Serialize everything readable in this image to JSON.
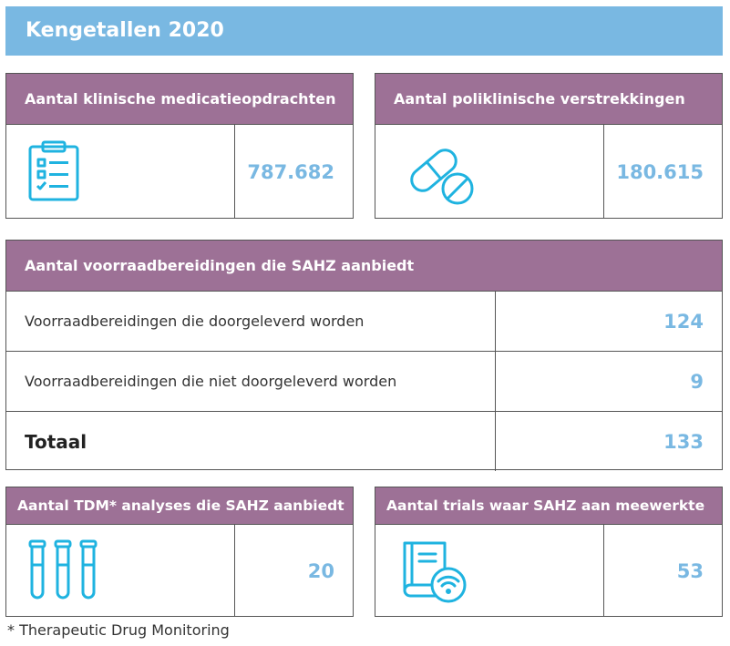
{
  "banner": {
    "title": "Kengetallen 2020"
  },
  "cards": {
    "clinical": {
      "title": "Aantal klinische medicatieopdrachten",
      "value": "787.682",
      "icon": "clipboard-checklist-icon"
    },
    "outpatient": {
      "title": "Aantal poliklinische verstrekkingen",
      "value": "180.615",
      "icon": "pill-capsule-icon"
    },
    "tdm": {
      "title": "Aantal TDM* analyses die SAHZ aanbiedt",
      "value": "20",
      "icon": "test-tubes-icon"
    },
    "trials": {
      "title": "Aantal trials waar SAHZ aan meewerkte",
      "value": "53",
      "icon": "book-signal-icon"
    }
  },
  "stock_table": {
    "title": "Aantal voorraadbereidingen die SAHZ aanbiedt",
    "rows": [
      {
        "label": "Voorraadbereidingen die doorgeleverd worden",
        "value": "124"
      },
      {
        "label": "Voorraadbereidingen die niet doorgeleverd worden",
        "value": "9"
      },
      {
        "label": "Totaal",
        "value": "133"
      }
    ]
  },
  "footnote": "* Therapeutic Drug Monitoring",
  "colors": {
    "banner": "#79b8e2",
    "header": "#9d7196",
    "accent": "#79b8e2",
    "icon": "#1fb3e0"
  }
}
